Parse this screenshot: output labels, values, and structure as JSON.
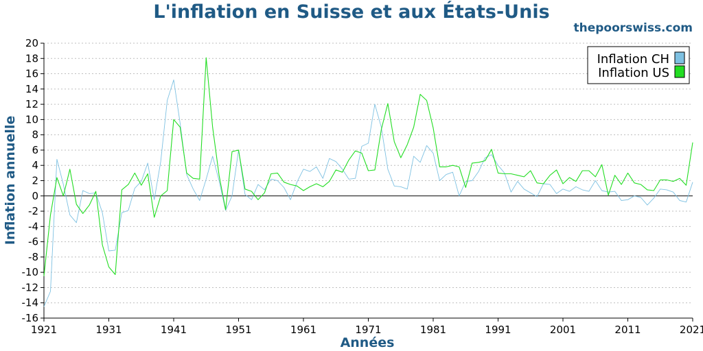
{
  "chart_data": {
    "type": "line",
    "title": "L'inflation en Suisse et aux États-Unis",
    "watermark": "thepoorswiss.com",
    "xlabel": "Années",
    "ylabel": "Inflation annuelle",
    "xlim": [
      1921,
      2021
    ],
    "ylim": [
      -16,
      20
    ],
    "xticks": [
      "1921",
      "1931",
      "1941",
      "1951",
      "1961",
      "1971",
      "1981",
      "1991",
      "2001",
      "2011",
      "2021"
    ],
    "yticks": [
      "20",
      "18",
      "16",
      "14",
      "12",
      "10",
      "8",
      "6",
      "4",
      "2",
      "0",
      "-2",
      "-4",
      "-6",
      "-8",
      "-10",
      "-12",
      "-14",
      "-16"
    ],
    "grid": true,
    "legend_position": "top-right",
    "x_start": 1921,
    "series": [
      {
        "name": "Inflation CH",
        "color": "#7ec1e2",
        "values": [
          -14.5,
          -12.5,
          4.8,
          1.5,
          -2.5,
          -3.5,
          0.7,
          0.3,
          0.4,
          -2.2,
          -7.2,
          -7.1,
          -2.2,
          -1.9,
          1.0,
          1.9,
          4.3,
          -0.5,
          4.5,
          12.5,
          15.2,
          9.5,
          2.8,
          0.9,
          -0.6,
          2.2,
          5.2,
          2.0,
          -1.9,
          0.0,
          6.0,
          0.2,
          -0.5,
          1.5,
          0.8,
          2.2,
          2.0,
          1.1,
          -0.5,
          1.8,
          3.5,
          3.2,
          3.8,
          2.3,
          4.9,
          4.5,
          3.5,
          2.2,
          2.3,
          6.5,
          6.9,
          12.0,
          9.0,
          3.5,
          1.3,
          1.2,
          0.9,
          5.2,
          4.4,
          6.6,
          5.6,
          2.0,
          2.8,
          3.1,
          0.0,
          1.9,
          2.0,
          3.2,
          5.0,
          5.4,
          4.0,
          3.0,
          0.5,
          1.9,
          0.9,
          0.4,
          -0.1,
          1.6,
          1.5,
          0.3,
          0.9,
          0.6,
          1.2,
          0.8,
          0.6,
          2.0,
          0.7,
          0.5,
          0.6,
          -0.6,
          -0.5,
          -0.0,
          -0.2,
          -1.2,
          -0.3,
          0.9,
          0.8,
          0.5,
          -0.6,
          -0.8,
          1.8
        ]
      },
      {
        "name": "Inflation US",
        "color": "#22dd22",
        "values": [
          -10.5,
          -2.5,
          2.4,
          0.0,
          3.5,
          -1.1,
          -2.3,
          -1.2,
          0.6,
          -6.4,
          -9.3,
          -10.3,
          0.8,
          1.5,
          3.0,
          1.4,
          2.9,
          -2.8,
          0.0,
          0.7,
          10.0,
          9.0,
          3.0,
          2.3,
          2.2,
          18.1,
          9.0,
          2.7,
          -1.8,
          5.8,
          6.0,
          0.9,
          0.6,
          -0.5,
          0.4,
          2.9,
          3.0,
          1.8,
          1.5,
          1.3,
          0.7,
          1.2,
          1.6,
          1.2,
          1.9,
          3.4,
          3.1,
          4.7,
          5.9,
          5.6,
          3.3,
          3.4,
          8.7,
          12.1,
          7.1,
          5.0,
          6.7,
          9.0,
          13.3,
          12.5,
          8.9,
          3.8,
          3.8,
          4.0,
          3.8,
          1.1,
          4.3,
          4.4,
          4.6,
          6.1,
          3.0,
          2.9,
          2.9,
          2.7,
          2.5,
          3.3,
          1.7,
          1.6,
          2.7,
          3.4,
          1.6,
          2.4,
          1.9,
          3.3,
          3.3,
          2.5,
          4.1,
          0.1,
          2.7,
          1.5,
          3.0,
          1.7,
          1.5,
          0.8,
          0.7,
          2.1,
          2.1,
          1.9,
          2.3,
          1.4,
          7.0
        ]
      }
    ]
  }
}
